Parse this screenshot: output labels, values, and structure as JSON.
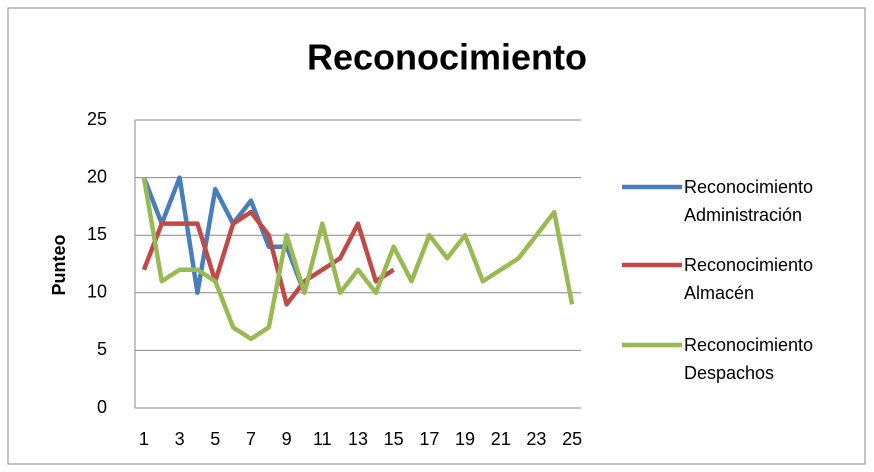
{
  "chart_data": {
    "type": "line",
    "title": "Reconocimiento",
    "y_label": "Punteo",
    "categories": [
      1,
      null,
      3,
      null,
      5,
      null,
      7,
      null,
      9,
      null,
      11,
      null,
      13,
      null,
      15,
      null,
      17,
      null,
      19,
      null,
      21,
      null,
      23,
      null,
      25
    ],
    "series": [
      {
        "name": "Reconocimiento Administración",
        "color": "#4a7ebb",
        "values": [
          20,
          16,
          20,
          10,
          19,
          16,
          18,
          14,
          14,
          10,
          null,
          null,
          null,
          null,
          null,
          null,
          null,
          null,
          null,
          null,
          null,
          null,
          null,
          null,
          null
        ]
      },
      {
        "name": "Reconocimiento Almacén",
        "color": "#be4b48",
        "values": [
          12,
          16,
          16,
          16,
          11,
          16,
          17,
          15,
          9,
          11,
          12,
          13,
          16,
          11,
          12,
          null,
          null,
          null,
          null,
          null,
          null,
          null,
          null,
          null,
          null
        ]
      },
      {
        "name": "Reconocimiento Despachos",
        "color": "#98b954",
        "values": [
          20,
          11,
          12,
          12,
          11,
          7,
          6,
          7,
          15,
          10,
          16,
          10,
          12,
          10,
          14,
          11,
          15,
          13,
          15,
          11,
          12,
          13,
          15,
          17,
          9
        ]
      }
    ],
    "ylim": [
      0,
      25
    ],
    "yticks": [
      0,
      5,
      10,
      15,
      20,
      25
    ],
    "grid": true,
    "legend": "right"
  }
}
